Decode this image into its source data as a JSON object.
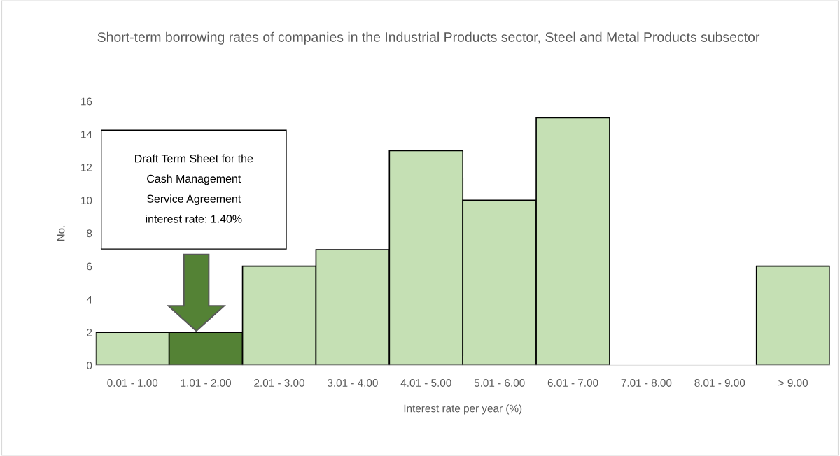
{
  "chart_data": {
    "type": "bar",
    "title": "Short-term borrowing rates of companies in the Industrial Products sector, Steel and Metal Products subsector",
    "xlabel": "Interest rate per year (%)",
    "ylabel": "No.",
    "categories": [
      "0.01 - 1.00",
      "1.01 - 2.00",
      "2.01 - 3.00",
      "3.01 - 4.00",
      "4.01 - 5.00",
      "5.01 - 6.00",
      "6.01 - 7.00",
      "7.01 - 8.00",
      "8.01 - 9.00",
      "> 9.00"
    ],
    "values": [
      2,
      2,
      6,
      7,
      13,
      10,
      15,
      0,
      0,
      6
    ],
    "colors": [
      "#c5e0b4",
      "#548235",
      "#c5e0b4",
      "#c5e0b4",
      "#c5e0b4",
      "#c5e0b4",
      "#c5e0b4",
      "#c5e0b4",
      "#c5e0b4",
      "#c5e0b4"
    ],
    "ylim": [
      0,
      16
    ],
    "yticks": [
      0,
      2,
      4,
      6,
      8,
      10,
      12,
      14,
      16
    ],
    "grid": false,
    "legend": false,
    "annotations": [
      "Draft Term Sheet for the\nCash Management\nService Agreement\ninterest rate: 1.40%"
    ]
  }
}
